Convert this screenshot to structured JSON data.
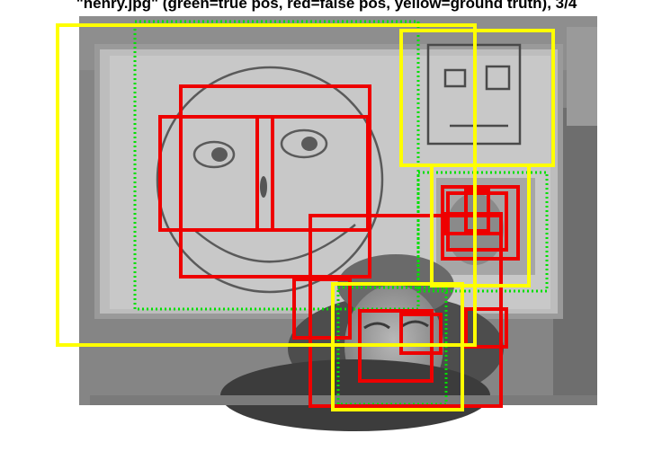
{
  "title": "\"henry.jpg\" (green=true pos, red=false pos, yellow=ground truth), 3/4",
  "legend": {
    "true_pos_color": "#00e000",
    "false_pos_color": "#ee0000",
    "ground_truth_color": "#ffff00"
  }
}
